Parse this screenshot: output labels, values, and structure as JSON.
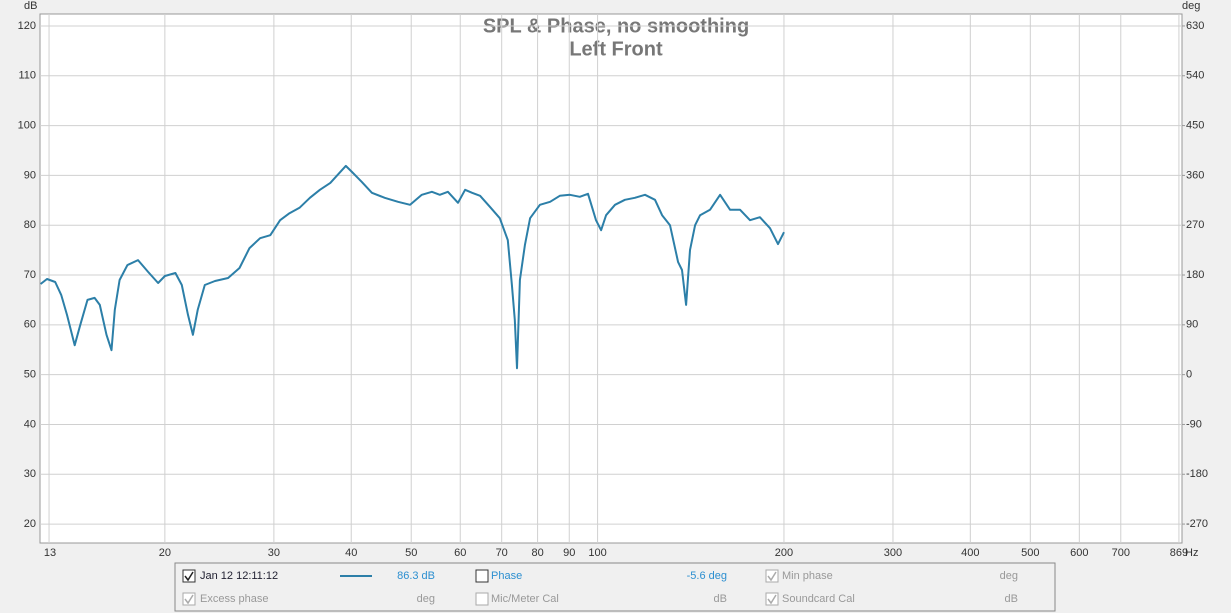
{
  "chart_data": {
    "type": "line",
    "title": "SPL & Phase, no smoothing",
    "subtitle": "Left Front",
    "y_label": "dB",
    "y2_label": "deg",
    "x_label": "Hz",
    "log_x": true,
    "grid": true,
    "xlim": [
      12.57,
      879
    ],
    "xticks": [
      13,
      20,
      30,
      40,
      50,
      60,
      70,
      80,
      90,
      100,
      200,
      300,
      400,
      500,
      600,
      700,
      869
    ],
    "ylim": [
      16.2,
      122.4
    ],
    "yticks": [
      20,
      30,
      40,
      50,
      60,
      70,
      80,
      90,
      100,
      110,
      120
    ],
    "y2lim": [
      -304.2,
      651.6
    ],
    "y2ticks": [
      -270,
      -180,
      -90,
      0,
      90,
      180,
      270,
      360,
      450,
      540,
      630
    ],
    "series": [
      {
        "name": "Jan 12 12:11:12",
        "color": "#2c7fa8",
        "x": [
          12.6,
          12.9,
          13.3,
          13.6,
          13.9,
          14.3,
          14.6,
          15.0,
          15.4,
          15.7,
          16.1,
          16.4,
          16.6,
          16.9,
          17.4,
          18.1,
          18.8,
          19.5,
          20,
          20.8,
          21.3,
          21.8,
          22.2,
          22.6,
          23.2,
          24.1,
          25.3,
          26.4,
          27.4,
          28.5,
          29.6,
          30.7,
          31.8,
          33.0,
          34.3,
          35.6,
          37.0,
          38.4,
          39.2,
          40.1,
          41.6,
          43.2,
          45.3,
          47.6,
          49.8,
          52.0,
          54.0,
          55.6,
          57.3,
          59.5,
          61.1,
          62.7,
          64.6,
          67.0,
          69.5,
          71.6,
          72.7,
          73.5,
          74.1,
          74.9,
          76.3,
          77.8,
          80.7,
          83.8,
          86.9,
          90.2,
          93.6,
          96.5,
          99.4,
          101.3,
          103.2,
          106.7,
          110.7,
          114.9,
          119.3,
          123.8,
          127.1,
          130.9,
          134.9,
          136.9,
          139.0,
          141.0,
          143.7,
          146.4,
          151.9,
          157.7,
          163.7,
          169.9,
          176.3,
          182.9,
          189.9,
          195.6,
          200
        ],
        "values": [
          68.2,
          69.2,
          68.6,
          66.0,
          62.0,
          55.9,
          60.0,
          65.0,
          65.4,
          64.0,
          58.0,
          54.9,
          63.0,
          69.0,
          72.0,
          73.0,
          70.6,
          68.4,
          69.8,
          70.4,
          68.0,
          62.0,
          58.0,
          63.0,
          68.0,
          68.8,
          69.4,
          71.4,
          75.4,
          77.4,
          78.0,
          81.0,
          82.4,
          83.5,
          85.5,
          87.1,
          88.5,
          90.7,
          91.9,
          90.7,
          88.7,
          86.5,
          85.5,
          84.7,
          84.1,
          86.1,
          86.7,
          86.1,
          86.7,
          84.5,
          87.1,
          86.5,
          85.9,
          83.7,
          81.4,
          77.0,
          68.0,
          61.0,
          51.3,
          69.0,
          76.0,
          81.4,
          84.1,
          84.7,
          85.9,
          86.1,
          85.7,
          86.3,
          81.0,
          79.0,
          82.0,
          84.1,
          85.1,
          85.5,
          86.1,
          85.1,
          82.0,
          80.0,
          72.6,
          71.0,
          64.0,
          75.0,
          80.0,
          82.0,
          83.1,
          86.1,
          83.1,
          83.1,
          81.0,
          81.6,
          79.4,
          76.2,
          78.6
        ]
      }
    ]
  },
  "panel": {
    "readout": "86.3 dB",
    "items": [
      {
        "label": "Phase",
        "checked": false,
        "enabled": true,
        "readout": "-5.6 deg"
      },
      {
        "label": "Min phase",
        "checked": true,
        "enabled": false,
        "readout": "deg"
      },
      {
        "label": "Excess phase",
        "checked": true,
        "enabled": false,
        "readout": "deg"
      },
      {
        "label": "Mic/Meter Cal",
        "checked": false,
        "enabled": false,
        "readout": "dB"
      },
      {
        "label": "Soundcard Cal",
        "checked": true,
        "enabled": false,
        "readout": "dB"
      }
    ]
  }
}
